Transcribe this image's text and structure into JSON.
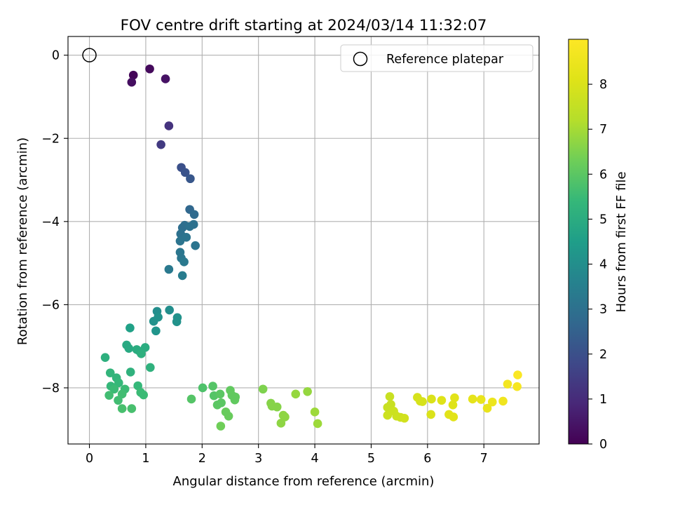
{
  "chart_data": {
    "type": "scatter",
    "title": "FOV centre drift starting at 2024/03/14 11:32:07",
    "xlabel": "Angular distance from reference (arcmin)",
    "ylabel": "Rotation from reference (arcmin)",
    "xlim": [
      -0.38,
      7.98
    ],
    "ylim": [
      -9.35,
      0.45
    ],
    "xticks": [
      0,
      1,
      2,
      3,
      4,
      5,
      6,
      7
    ],
    "yticks": [
      0,
      -2,
      -4,
      -6,
      -8
    ],
    "grid": true,
    "legend": {
      "position": "top-right",
      "entries": [
        "Reference platepar"
      ]
    },
    "reference_point": {
      "x": 0,
      "y": 0
    },
    "colorbar": {
      "label": "Hours from first FF file",
      "range": [
        0,
        9
      ],
      "ticks": [
        0,
        1,
        2,
        3,
        4,
        5,
        6,
        7,
        8
      ],
      "colormap": "viridis"
    },
    "points": [
      {
        "x": 0.78,
        "y": -0.48,
        "t": 0.1
      },
      {
        "x": 1.07,
        "y": -0.33,
        "t": 0.2
      },
      {
        "x": 0.75,
        "y": -0.65,
        "t": 0.3
      },
      {
        "x": 1.35,
        "y": -0.57,
        "t": 0.4
      },
      {
        "x": 1.41,
        "y": -1.7,
        "t": 1.2
      },
      {
        "x": 1.27,
        "y": -2.15,
        "t": 1.4
      },
      {
        "x": 1.63,
        "y": -2.7,
        "t": 2.0
      },
      {
        "x": 1.7,
        "y": -2.82,
        "t": 2.1
      },
      {
        "x": 1.79,
        "y": -2.97,
        "t": 2.2
      },
      {
        "x": 1.78,
        "y": -3.71,
        "t": 2.7
      },
      {
        "x": 1.86,
        "y": -3.83,
        "t": 2.8
      },
      {
        "x": 1.69,
        "y": -4.09,
        "t": 2.9
      },
      {
        "x": 1.65,
        "y": -4.15,
        "t": 2.9
      },
      {
        "x": 1.78,
        "y": -4.12,
        "t": 3.0
      },
      {
        "x": 1.85,
        "y": -4.07,
        "t": 3.0
      },
      {
        "x": 1.62,
        "y": -4.3,
        "t": 3.0
      },
      {
        "x": 1.72,
        "y": -4.38,
        "t": 3.1
      },
      {
        "x": 1.61,
        "y": -4.47,
        "t": 3.1
      },
      {
        "x": 1.88,
        "y": -4.58,
        "t": 3.1
      },
      {
        "x": 1.61,
        "y": -4.74,
        "t": 3.2
      },
      {
        "x": 1.63,
        "y": -4.88,
        "t": 3.2
      },
      {
        "x": 1.68,
        "y": -4.97,
        "t": 3.3
      },
      {
        "x": 1.41,
        "y": -5.15,
        "t": 3.3
      },
      {
        "x": 1.65,
        "y": -5.3,
        "t": 3.4
      },
      {
        "x": 1.2,
        "y": -6.16,
        "t": 4.0
      },
      {
        "x": 1.42,
        "y": -6.13,
        "t": 4.0
      },
      {
        "x": 1.22,
        "y": -6.3,
        "t": 4.1
      },
      {
        "x": 1.56,
        "y": -6.31,
        "t": 4.1
      },
      {
        "x": 1.14,
        "y": -6.4,
        "t": 4.1
      },
      {
        "x": 1.55,
        "y": -6.41,
        "t": 4.1
      },
      {
        "x": 1.18,
        "y": -6.63,
        "t": 4.2
      },
      {
        "x": 0.72,
        "y": -6.56,
        "t": 4.6
      },
      {
        "x": 0.66,
        "y": -6.97,
        "t": 4.9
      },
      {
        "x": 0.7,
        "y": -7.05,
        "t": 4.9
      },
      {
        "x": 0.84,
        "y": -7.08,
        "t": 5.0
      },
      {
        "x": 0.89,
        "y": -7.12,
        "t": 5.0
      },
      {
        "x": 0.99,
        "y": -7.03,
        "t": 5.0
      },
      {
        "x": 0.92,
        "y": -7.18,
        "t": 5.1
      },
      {
        "x": 0.28,
        "y": -7.27,
        "t": 5.1
      },
      {
        "x": 1.08,
        "y": -7.51,
        "t": 5.2
      },
      {
        "x": 0.73,
        "y": -7.62,
        "t": 5.2
      },
      {
        "x": 0.37,
        "y": -7.64,
        "t": 5.3
      },
      {
        "x": 0.48,
        "y": -7.76,
        "t": 5.3
      },
      {
        "x": 0.52,
        "y": -7.88,
        "t": 5.4
      },
      {
        "x": 0.38,
        "y": -7.96,
        "t": 5.4
      },
      {
        "x": 0.86,
        "y": -7.95,
        "t": 5.4
      },
      {
        "x": 0.44,
        "y": -8.03,
        "t": 5.5
      },
      {
        "x": 0.63,
        "y": -8.03,
        "t": 5.5
      },
      {
        "x": 0.91,
        "y": -8.11,
        "t": 5.5
      },
      {
        "x": 0.96,
        "y": -8.17,
        "t": 5.5
      },
      {
        "x": 0.35,
        "y": -8.18,
        "t": 5.6
      },
      {
        "x": 0.58,
        "y": -8.15,
        "t": 5.6
      },
      {
        "x": 0.51,
        "y": -8.3,
        "t": 5.6
      },
      {
        "x": 0.58,
        "y": -8.5,
        "t": 5.7
      },
      {
        "x": 0.75,
        "y": -8.5,
        "t": 5.7
      },
      {
        "x": 2.01,
        "y": -8.0,
        "t": 5.8
      },
      {
        "x": 2.19,
        "y": -7.96,
        "t": 5.9
      },
      {
        "x": 1.81,
        "y": -8.27,
        "t": 5.9
      },
      {
        "x": 2.21,
        "y": -8.19,
        "t": 5.9
      },
      {
        "x": 2.32,
        "y": -8.15,
        "t": 6.0
      },
      {
        "x": 2.27,
        "y": -8.41,
        "t": 6.0
      },
      {
        "x": 2.34,
        "y": -8.36,
        "t": 6.0
      },
      {
        "x": 2.5,
        "y": -8.06,
        "t": 6.1
      },
      {
        "x": 2.53,
        "y": -8.18,
        "t": 6.1
      },
      {
        "x": 2.59,
        "y": -8.22,
        "t": 6.1
      },
      {
        "x": 2.58,
        "y": -8.29,
        "t": 6.1
      },
      {
        "x": 2.42,
        "y": -8.58,
        "t": 6.2
      },
      {
        "x": 2.47,
        "y": -8.68,
        "t": 6.2
      },
      {
        "x": 2.33,
        "y": -8.92,
        "t": 6.3
      },
      {
        "x": 3.08,
        "y": -8.03,
        "t": 6.5
      },
      {
        "x": 3.22,
        "y": -8.37,
        "t": 6.6
      },
      {
        "x": 3.24,
        "y": -8.44,
        "t": 6.6
      },
      {
        "x": 3.33,
        "y": -8.46,
        "t": 6.6
      },
      {
        "x": 3.44,
        "y": -8.66,
        "t": 6.7
      },
      {
        "x": 3.47,
        "y": -8.7,
        "t": 6.7
      },
      {
        "x": 3.4,
        "y": -8.85,
        "t": 6.7
      },
      {
        "x": 3.66,
        "y": -8.15,
        "t": 6.8
      },
      {
        "x": 3.87,
        "y": -8.09,
        "t": 6.8
      },
      {
        "x": 4.0,
        "y": -8.58,
        "t": 6.9
      },
      {
        "x": 4.05,
        "y": -8.86,
        "t": 6.9
      },
      {
        "x": 5.33,
        "y": -8.21,
        "t": 7.6
      },
      {
        "x": 5.35,
        "y": -8.4,
        "t": 7.6
      },
      {
        "x": 5.29,
        "y": -8.47,
        "t": 7.6
      },
      {
        "x": 5.4,
        "y": -8.56,
        "t": 7.7
      },
      {
        "x": 5.29,
        "y": -8.66,
        "t": 7.7
      },
      {
        "x": 5.45,
        "y": -8.68,
        "t": 7.7
      },
      {
        "x": 5.52,
        "y": -8.71,
        "t": 7.7
      },
      {
        "x": 5.59,
        "y": -8.73,
        "t": 7.8
      },
      {
        "x": 5.82,
        "y": -8.23,
        "t": 7.9
      },
      {
        "x": 5.87,
        "y": -8.32,
        "t": 7.9
      },
      {
        "x": 5.91,
        "y": -8.33,
        "t": 7.9
      },
      {
        "x": 6.07,
        "y": -8.27,
        "t": 8.0
      },
      {
        "x": 6.06,
        "y": -8.64,
        "t": 8.0
      },
      {
        "x": 6.25,
        "y": -8.3,
        "t": 8.1
      },
      {
        "x": 6.45,
        "y": -8.41,
        "t": 8.1
      },
      {
        "x": 6.48,
        "y": -8.24,
        "t": 8.2
      },
      {
        "x": 6.38,
        "y": -8.64,
        "t": 8.2
      },
      {
        "x": 6.46,
        "y": -8.7,
        "t": 8.2
      },
      {
        "x": 6.8,
        "y": -8.27,
        "t": 8.3
      },
      {
        "x": 6.95,
        "y": -8.28,
        "t": 8.4
      },
      {
        "x": 7.06,
        "y": -8.49,
        "t": 8.4
      },
      {
        "x": 7.15,
        "y": -8.34,
        "t": 8.5
      },
      {
        "x": 7.34,
        "y": -8.32,
        "t": 8.6
      },
      {
        "x": 7.42,
        "y": -7.91,
        "t": 8.7
      },
      {
        "x": 7.59,
        "y": -7.97,
        "t": 8.8
      },
      {
        "x": 7.6,
        "y": -7.69,
        "t": 8.9
      }
    ]
  }
}
